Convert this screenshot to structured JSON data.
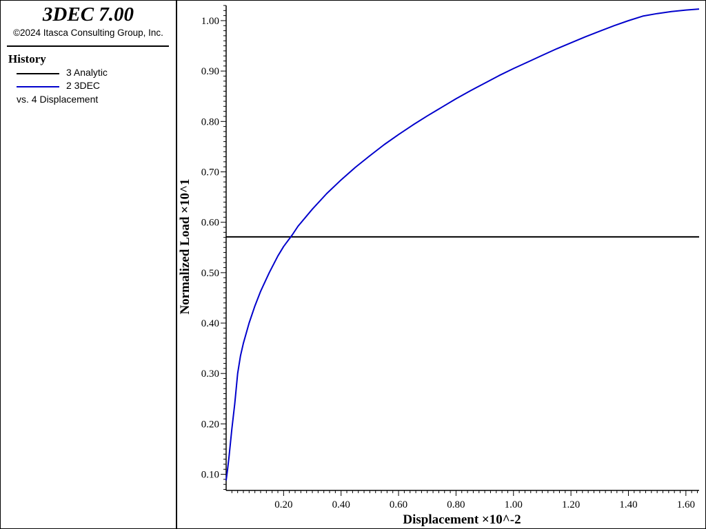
{
  "app": {
    "title": "3DEC 7.00",
    "copyright": "©2024 Itasca Consulting Group, Inc."
  },
  "legend": {
    "heading": "History",
    "entries": [
      {
        "label": "3 Analytic",
        "color": "#000000"
      },
      {
        "label": "2 3DEC",
        "color": "#0000cc"
      }
    ],
    "note": "vs. 4 Displacement"
  },
  "chart_data": {
    "type": "line",
    "xlabel": "Displacement ×10^-2",
    "ylabel": "Normalized Load ×10^1",
    "xlim": [
      0,
      1.646
    ],
    "ylim": [
      0.068,
      1.03
    ],
    "xticks": [
      "0.20",
      "0.40",
      "0.60",
      "0.80",
      "1.00",
      "1.20",
      "1.40",
      "1.60"
    ],
    "xtick_values": [
      0.2,
      0.4,
      0.6,
      0.8,
      1.0,
      1.2,
      1.4,
      1.6
    ],
    "yticks": [
      "0.10",
      "0.20",
      "0.30",
      "0.40",
      "0.50",
      "0.60",
      "0.70",
      "0.80",
      "0.90",
      "1.00"
    ],
    "ytick_values": [
      0.1,
      0.2,
      0.3,
      0.4,
      0.5,
      0.6,
      0.7,
      0.8,
      0.9,
      1.0
    ],
    "grid": false,
    "series": [
      {
        "name": "3 Analytic",
        "color": "#000000",
        "x": [
          0,
          1.646
        ],
        "y": [
          0.571,
          0.571
        ]
      },
      {
        "name": "2 3DEC",
        "color": "#0000cc",
        "x": [
          0,
          0.005,
          0.01,
          0.02,
          0.03,
          0.04,
          0.05,
          0.06,
          0.08,
          0.1,
          0.12,
          0.15,
          0.18,
          0.2,
          0.23,
          0.25,
          0.3,
          0.35,
          0.4,
          0.45,
          0.5,
          0.55,
          0.6,
          0.65,
          0.7,
          0.75,
          0.8,
          0.85,
          0.9,
          0.95,
          1.0,
          1.05,
          1.1,
          1.15,
          1.2,
          1.25,
          1.3,
          1.35,
          1.4,
          1.45,
          1.5,
          1.55,
          1.6,
          1.646
        ],
        "y": [
          0.088,
          0.11,
          0.135,
          0.19,
          0.24,
          0.3,
          0.335,
          0.36,
          0.4,
          0.434,
          0.463,
          0.5,
          0.533,
          0.552,
          0.575,
          0.592,
          0.626,
          0.657,
          0.684,
          0.709,
          0.732,
          0.754,
          0.774,
          0.793,
          0.811,
          0.828,
          0.845,
          0.861,
          0.876,
          0.891,
          0.905,
          0.918,
          0.931,
          0.944,
          0.956,
          0.968,
          0.979,
          0.99,
          1.0,
          1.009,
          1.014,
          1.018,
          1.021,
          1.023
        ]
      }
    ]
  }
}
